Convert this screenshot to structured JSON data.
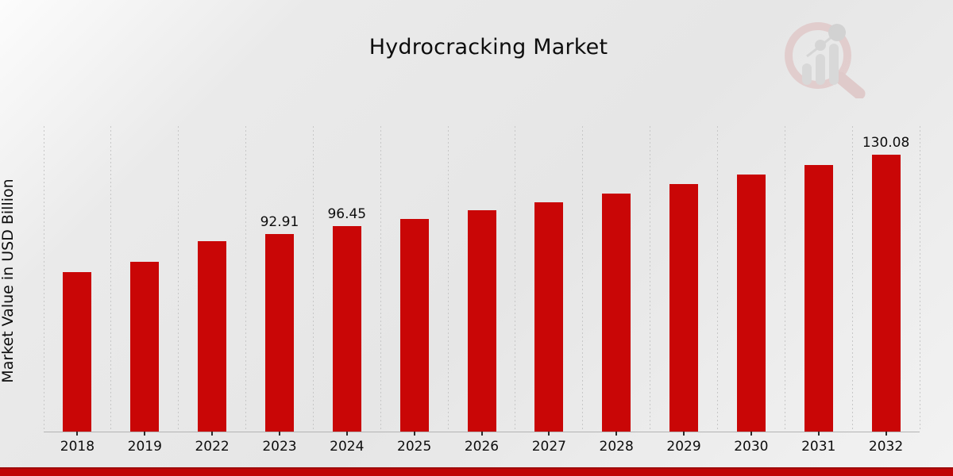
{
  "chart_data": {
    "type": "bar",
    "title": "Hydrocracking Market",
    "ylabel": "Market Value in USD Billion",
    "xlabel": "",
    "categories": [
      "2018",
      "2019",
      "2022",
      "2023",
      "2024",
      "2025",
      "2026",
      "2027",
      "2028",
      "2029",
      "2030",
      "2031",
      "2032"
    ],
    "values": [
      75.1,
      79.9,
      89.6,
      92.91,
      96.45,
      100.1,
      103.9,
      107.9,
      112.0,
      116.3,
      120.7,
      125.3,
      130.08
    ],
    "data_labels": [
      null,
      null,
      null,
      "92.91",
      "96.45",
      null,
      null,
      null,
      null,
      null,
      null,
      null,
      "130.08"
    ],
    "ylim": [
      0,
      143.6
    ],
    "grid": "vertical dotted lines at category boundaries",
    "legend": "none",
    "bar_color": "#c90606"
  },
  "colors": {
    "bar": "#c90606",
    "bottom_strip": "#bf0505",
    "bottom_strip_edge": "#9e0c0c",
    "gridline": "#c7c7c7",
    "axis_line": "#b3b3b3",
    "text": "#0d0d0d",
    "logo_ring": "#dcb4b4",
    "logo_bars": "#c9c9c9"
  },
  "logo": {
    "icon": "magnifier-bar-chart-logo-icon"
  }
}
